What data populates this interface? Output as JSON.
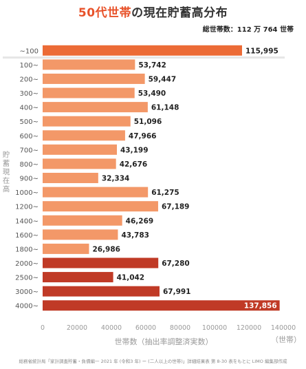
{
  "title": {
    "accent": "50代世帯",
    "rest": "の現在貯蓄高分布"
  },
  "total_label": "総世帯数：112 万 764 世帯",
  "source": "総務省統計局「家計調査貯蓄・負債編一 2021 年 (令和3 年) ー (二人以上の世帯)」詳細結果表 第 8-30 表をもとに LIMO 編集部作成",
  "colors": {
    "top": "#ec6b36",
    "mid": "#f39868",
    "high": "#c03a26"
  },
  "chart_data": {
    "type": "bar",
    "orientation": "horizontal",
    "title": "50代世帯の現在貯蓄高分布",
    "xlabel": "世帯数（抽出率調整済実数）",
    "ylabel": "貯蓄現在高",
    "x_unit": "（世帯）",
    "xlim": [
      0,
      140000
    ],
    "xticks": [
      "0",
      "20000",
      "40000",
      "60000",
      "80000",
      "100000",
      "120000",
      "140000"
    ],
    "categories": [
      "~100",
      "100~",
      "200~",
      "300~",
      "400~",
      "500~",
      "600~",
      "700~",
      "800~",
      "900~",
      "1000~",
      "1200~",
      "1400~",
      "1600~",
      "1800~",
      "2000~",
      "2500~",
      "3000~",
      "4000~"
    ],
    "values": [
      115995,
      53742,
      59447,
      53490,
      61148,
      51096,
      47966,
      43199,
      42676,
      32334,
      61275,
      67189,
      46269,
      43783,
      26986,
      67280,
      41042,
      67991,
      137856
    ],
    "labels": [
      "115,995",
      "53,742",
      "59,447",
      "53,490",
      "61,148",
      "51,096",
      "47,966",
      "43,199",
      "42,676",
      "32,334",
      "61,275",
      "67,189",
      "46,269",
      "43,783",
      "26,986",
      "67,280",
      "41,042",
      "67,991",
      "137,856"
    ],
    "color_groups": [
      "top",
      "mid",
      "mid",
      "mid",
      "mid",
      "mid",
      "mid",
      "mid",
      "mid",
      "mid",
      "mid",
      "mid",
      "mid",
      "mid",
      "mid",
      "high",
      "high",
      "high",
      "high"
    ],
    "grid": false
  }
}
